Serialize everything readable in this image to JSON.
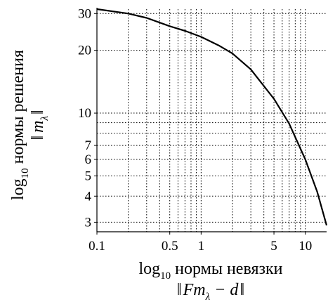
{
  "chart_data": {
    "type": "line",
    "xscale": "log",
    "yscale": "log",
    "xlim": [
      0.1,
      16
    ],
    "ylim": [
      2.7,
      31.5
    ],
    "grid": true,
    "x_tick_labels": [
      "0.1",
      "0.5",
      "1",
      "5",
      "10"
    ],
    "x_ticks": [
      0.1,
      0.5,
      1,
      5,
      10
    ],
    "x_minor_grid": [
      0.2,
      0.3,
      0.4,
      0.5,
      0.6,
      0.7,
      0.8,
      0.9,
      1,
      2,
      3,
      4,
      5,
      6,
      7,
      8,
      9,
      10
    ],
    "y_tick_labels": [
      "3",
      "4",
      "5",
      "6",
      "7",
      "10",
      "20",
      "30"
    ],
    "y_ticks": [
      3,
      4,
      5,
      6,
      7,
      10,
      20,
      30
    ],
    "y_minor_grid": [
      3,
      4,
      5,
      6,
      7,
      8,
      9,
      10,
      20,
      30
    ],
    "xlabel": {
      "line1_prefix": "log",
      "line1_sub": "10",
      "line1_text": " нормы невязки",
      "line2_open": "‖",
      "line2_main": "Fm",
      "line2_sub": "λ",
      "line2_rest": " − d",
      "line2_close": "‖"
    },
    "ylabel": {
      "line1_prefix": "log",
      "line1_sub": "10",
      "line1_text": " нормы решения",
      "line2_open": "‖",
      "line2_main": "m",
      "line2_sub": "λ",
      "line2_close": "‖"
    },
    "series": [
      {
        "x": [
          0.1,
          0.2,
          0.3,
          0.5,
          0.7,
          1.0,
          1.5,
          2.0,
          3.0,
          5.0,
          7.0,
          10.0,
          13.0,
          16.0
        ],
        "y": [
          31.5,
          30.0,
          28.6,
          26.1,
          24.8,
          23.2,
          21.0,
          19.3,
          16.2,
          11.7,
          8.9,
          6.0,
          4.2,
          2.9
        ]
      }
    ]
  }
}
